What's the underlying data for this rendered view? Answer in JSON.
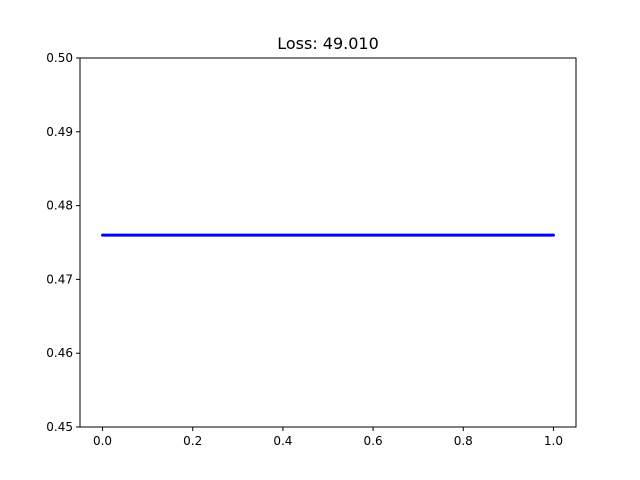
{
  "chart_data": {
    "type": "line",
    "title": "Loss: 49.010",
    "xlabel": "",
    "ylabel": "",
    "xlim": [
      -0.05,
      1.05
    ],
    "ylim": [
      0.45,
      0.5
    ],
    "xticks": [
      0.0,
      0.2,
      0.4,
      0.6,
      0.8,
      1.0
    ],
    "xtick_labels": [
      "0.0",
      "0.2",
      "0.4",
      "0.6",
      "0.8",
      "1.0"
    ],
    "yticks": [
      0.45,
      0.46,
      0.47,
      0.48,
      0.49,
      0.5
    ],
    "ytick_labels": [
      "0.45",
      "0.46",
      "0.47",
      "0.48",
      "0.49",
      "0.50"
    ],
    "grid": false,
    "series": [
      {
        "color": "#0000ff",
        "x": [
          0.0,
          1.0
        ],
        "y": [
          0.476,
          0.476
        ]
      }
    ]
  }
}
